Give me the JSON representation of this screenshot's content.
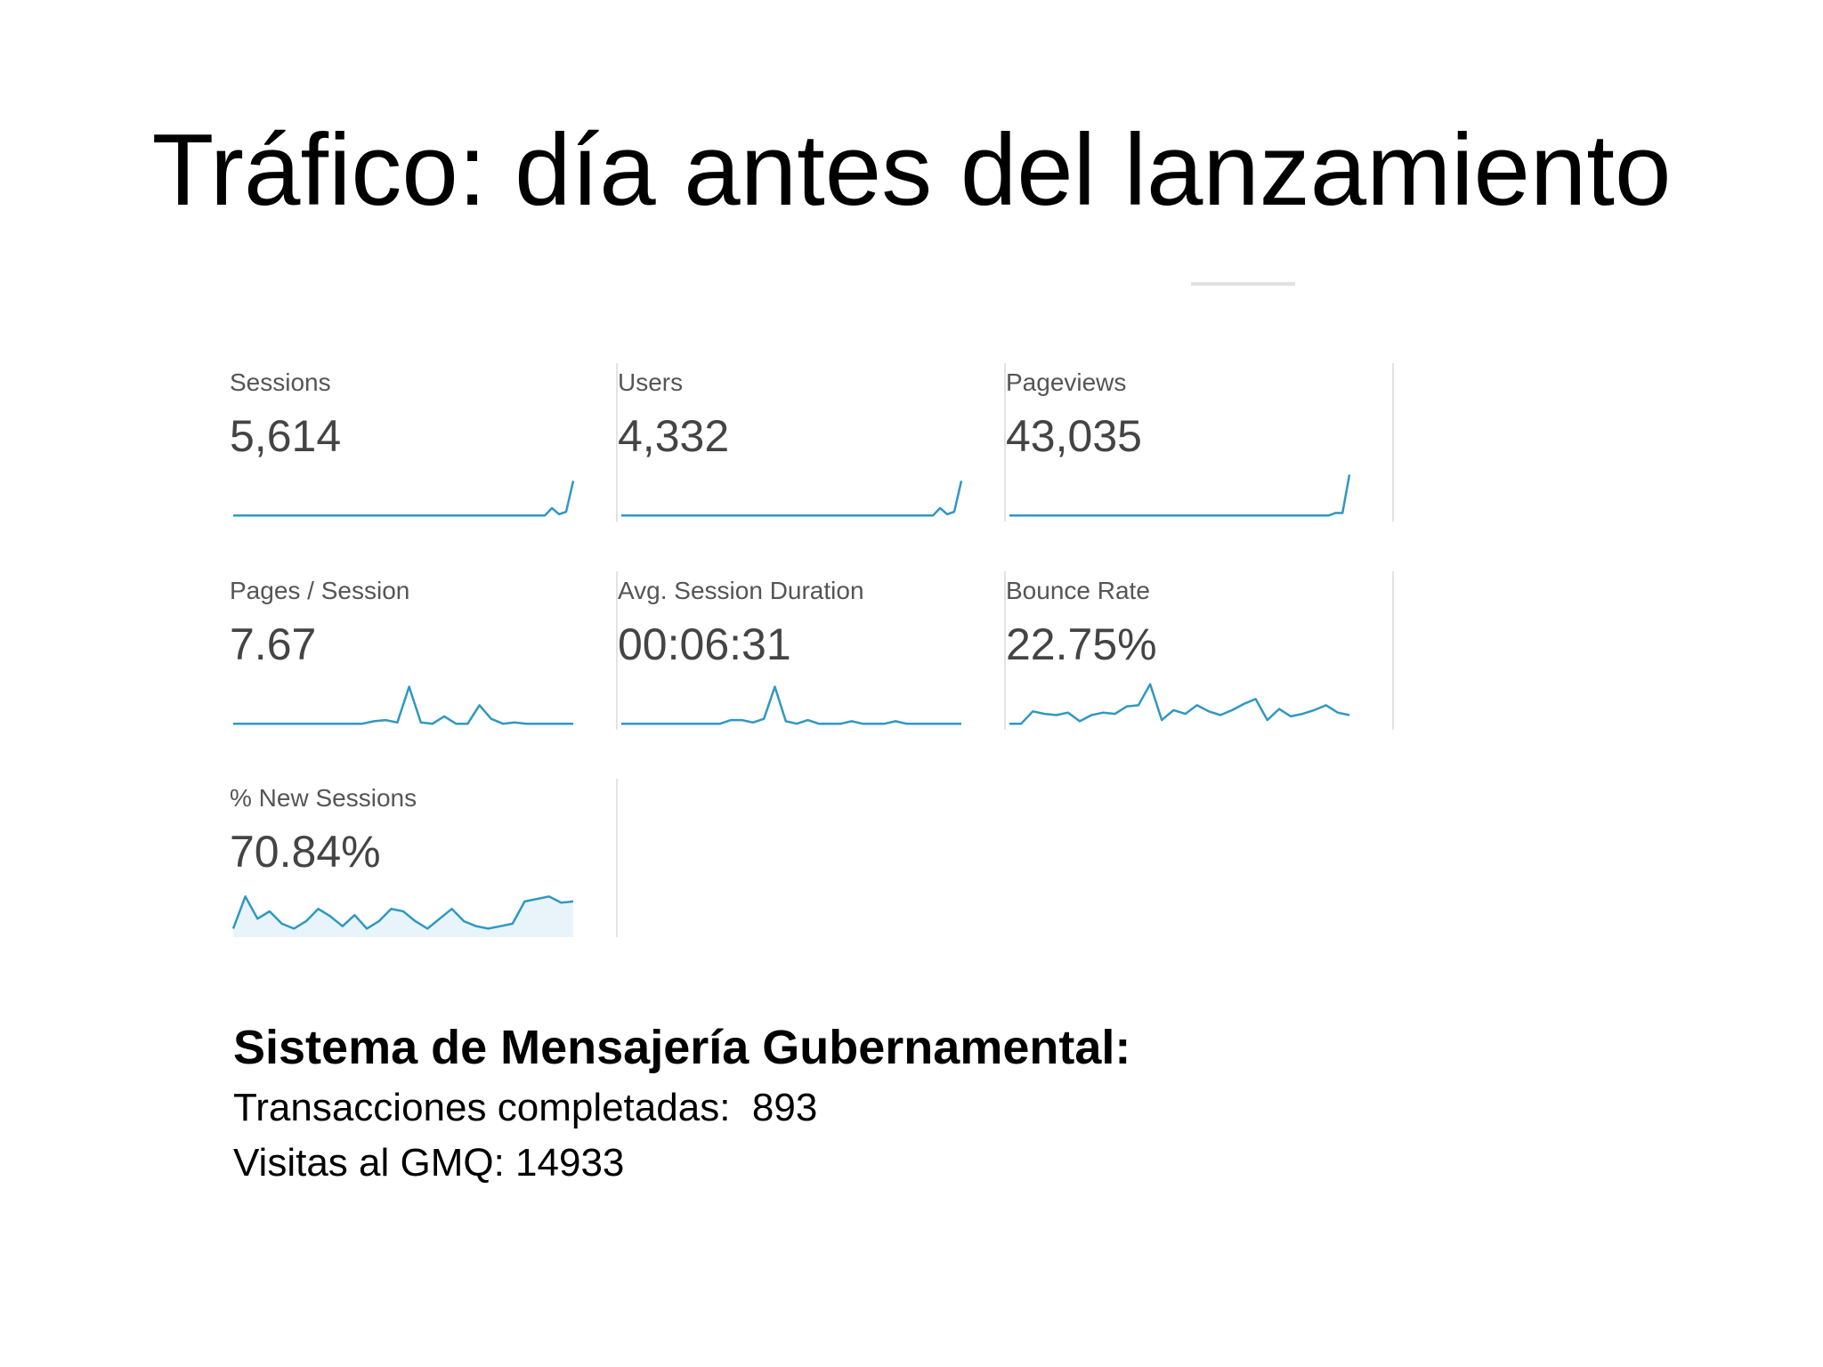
{
  "slide": {
    "title": "Tráfico: día antes del lanzamiento"
  },
  "metrics": [
    {
      "label": "Sessions",
      "value": "5,614",
      "trend": [
        2,
        2,
        2,
        2,
        2,
        2,
        2,
        2,
        2,
        2,
        2,
        2,
        2,
        2,
        2,
        2,
        2,
        2,
        2,
        2,
        2,
        2,
        2,
        2,
        2,
        2,
        2,
        2,
        2,
        2,
        2,
        2,
        2,
        2,
        2,
        2,
        2,
        2,
        2,
        2,
        2,
        2,
        2,
        2,
        2,
        8,
        3,
        5,
        30
      ],
      "filled": false
    },
    {
      "label": "Users",
      "value": "4,332",
      "trend": [
        2,
        2,
        2,
        2,
        2,
        2,
        2,
        2,
        2,
        2,
        2,
        2,
        2,
        2,
        2,
        2,
        2,
        2,
        2,
        2,
        2,
        2,
        2,
        2,
        2,
        2,
        2,
        2,
        2,
        2,
        2,
        2,
        2,
        2,
        2,
        2,
        2,
        2,
        2,
        2,
        2,
        2,
        2,
        2,
        2,
        8,
        3,
        5,
        30
      ],
      "filled": false
    },
    {
      "label": "Pageviews",
      "value": "43,035",
      "trend": [
        2,
        2,
        2,
        2,
        2,
        2,
        2,
        2,
        2,
        2,
        2,
        2,
        2,
        2,
        2,
        2,
        2,
        2,
        2,
        2,
        2,
        2,
        2,
        2,
        2,
        2,
        2,
        2,
        2,
        2,
        2,
        2,
        2,
        2,
        2,
        2,
        2,
        2,
        2,
        2,
        2,
        2,
        2,
        2,
        2,
        2,
        2,
        4,
        4,
        35
      ],
      "filled": false
    },
    {
      "label": "Pages / Session",
      "value": "7.67",
      "trend": [
        2,
        2,
        2,
        2,
        2,
        2,
        2,
        2,
        2,
        2,
        2,
        2,
        4,
        5,
        3,
        32,
        3,
        2,
        8,
        2,
        2,
        17,
        6,
        2,
        3,
        2,
        2,
        2,
        2,
        2
      ],
      "filled": false
    },
    {
      "label": "Avg. Session Duration",
      "value": "00:06:31",
      "trend": [
        2,
        2,
        2,
        2,
        2,
        2,
        2,
        2,
        2,
        2,
        5,
        5,
        3,
        6,
        32,
        4,
        2,
        5,
        2,
        2,
        2,
        4,
        2,
        2,
        2,
        4,
        2,
        2,
        2,
        2,
        2,
        2
      ],
      "filled": false
    },
    {
      "label": "Bounce Rate",
      "value": "22.75%",
      "trend": [
        2,
        2,
        12,
        10,
        9,
        11,
        4,
        9,
        11,
        10,
        16,
        17,
        34,
        5,
        13,
        10,
        17,
        12,
        9,
        13,
        18,
        22,
        5,
        14,
        8,
        10,
        13,
        17,
        11,
        9
      ],
      "filled": false
    },
    {
      "label": "% New Sessions",
      "value": "70.84%",
      "trend": [
        4,
        30,
        12,
        18,
        8,
        4,
        10,
        20,
        14,
        6,
        15,
        4,
        10,
        20,
        18,
        10,
        4,
        12,
        20,
        10,
        6,
        4,
        6,
        8,
        26,
        28,
        30,
        25,
        26
      ],
      "filled": true
    }
  ],
  "summary": {
    "heading": "Sistema de Mensajería Gubernamental:",
    "transactions_line": "Transacciones completadas:  893",
    "visits_line": "Visitas al GMQ: 14933"
  }
}
